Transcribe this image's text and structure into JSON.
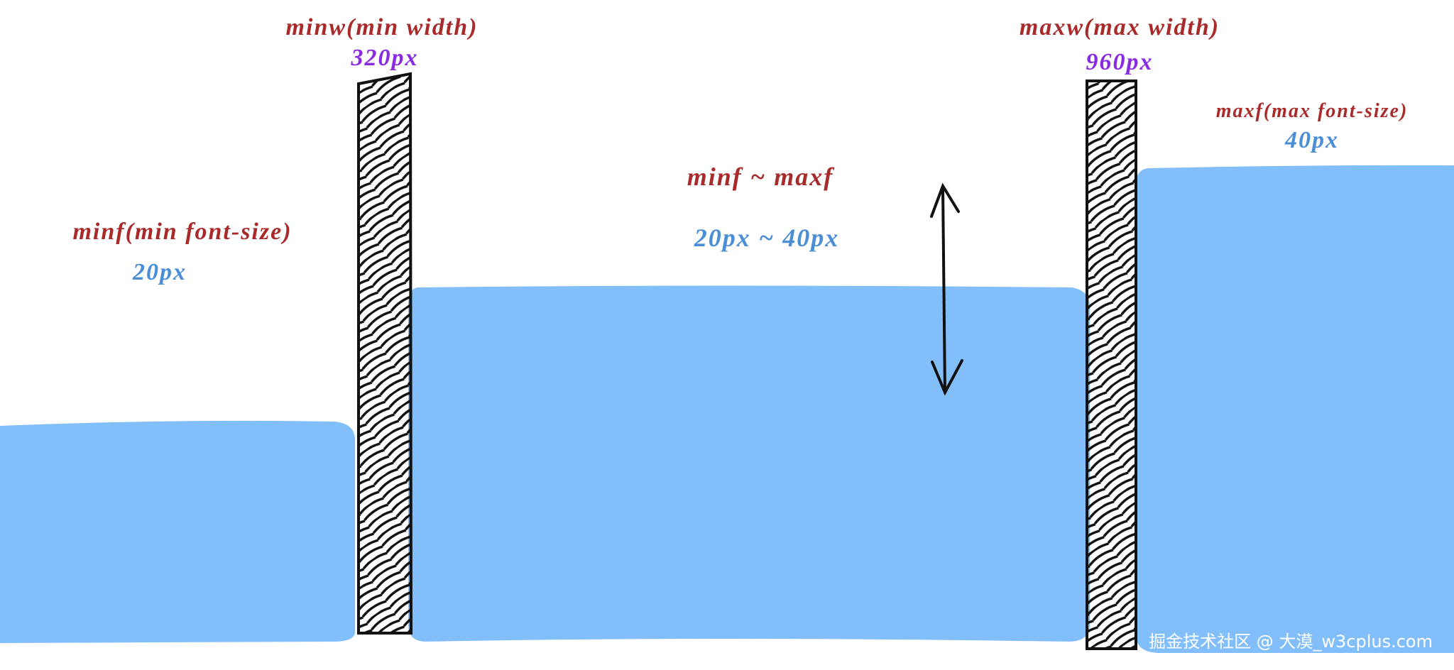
{
  "labels": {
    "min_width_title": "minw(min width)",
    "min_width_value": "320px",
    "max_width_title": "maxw(max width)",
    "max_width_value": "960px",
    "max_font_title": "maxf(max font-size)",
    "max_font_value": "40px",
    "range_title": "minf ~ maxf",
    "range_value": "20px ~ 40px",
    "min_font_title": "minf(min font-size)",
    "min_font_value": "20px"
  },
  "watermark": "掘金技术社区 @ 大漠_w3cplus.com"
}
